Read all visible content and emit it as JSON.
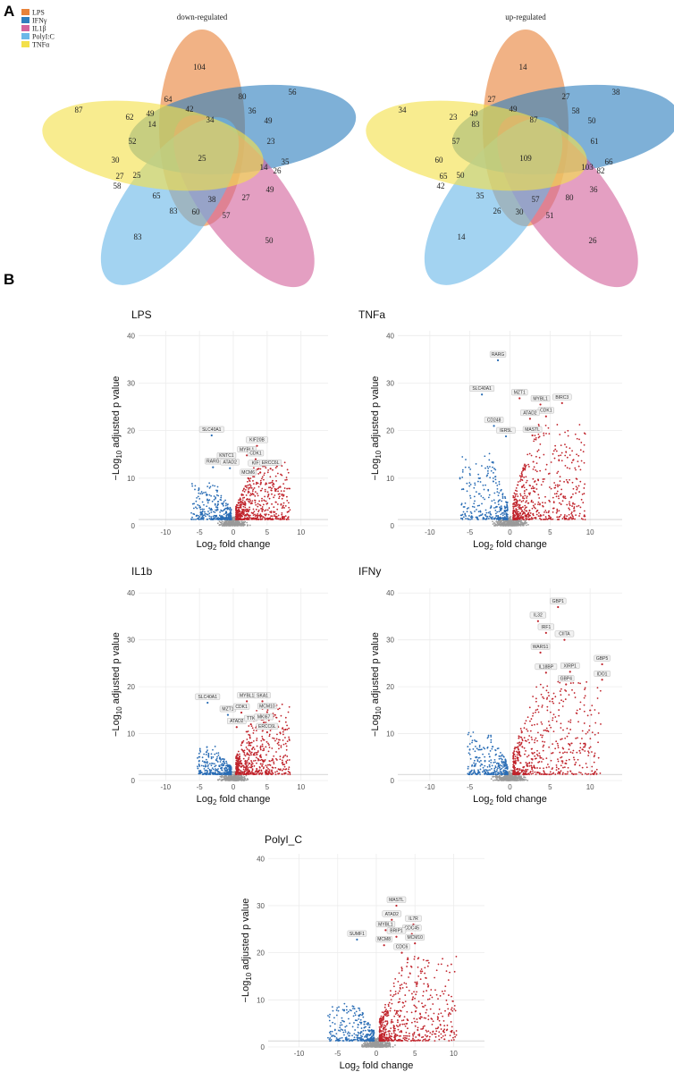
{
  "panels": {
    "a": "A",
    "b": "B"
  },
  "colors": {
    "lps": "#e8833a",
    "ifny": "#2f7fbf",
    "il1b": "#d3649d",
    "polyic": "#6bb8e8",
    "tnfa": "#f3e04a",
    "down": "#2a6db5",
    "up": "#c0232b",
    "ns": "#9a9a9a",
    "grid": "#ececec"
  },
  "venn": {
    "legend": [
      "LPS",
      "IFNγ",
      "IL1β",
      "PolyI:C",
      "TNFα"
    ],
    "down": {
      "title": "down-regulated",
      "values": [
        "104",
        "56",
        "50",
        "83",
        "87",
        "64",
        "80",
        "36",
        "49",
        "42",
        "34",
        "49",
        "62",
        "14",
        "52",
        "23",
        "30",
        "25",
        "14",
        "35",
        "26",
        "27",
        "25",
        "58",
        "65",
        "83",
        "60",
        "38",
        "27",
        "49",
        "57"
      ]
    },
    "up": {
      "title": "up-regulated",
      "values": [
        "14",
        "38",
        "26",
        "14",
        "34",
        "27",
        "27",
        "58",
        "49",
        "49",
        "87",
        "50",
        "23",
        "83",
        "57",
        "61",
        "60",
        "109",
        "103",
        "66",
        "82",
        "65",
        "50",
        "42",
        "35",
        "26",
        "30",
        "57",
        "80",
        "36",
        "51"
      ]
    }
  },
  "chart_data": [
    {
      "type": "scatter",
      "title": "LPS",
      "xlabel": "Log2 fold change",
      "ylabel": "−Log10 adjusted p value",
      "xlim": [
        -14,
        14
      ],
      "ylim": [
        0,
        41
      ],
      "xticks": [
        "-10",
        "-5",
        "0",
        "5",
        "10"
      ],
      "yticks": [
        "0",
        "10",
        "20",
        "30",
        "40"
      ],
      "threshold": 1.3,
      "cloud": {
        "neg_extent": 6,
        "pos_extent": 8,
        "neg_peak": 8,
        "pos_peak": 12
      },
      "labels": [
        {
          "name": "SLC40A1",
          "x": -3.2,
          "y": 19
        },
        {
          "name": "KNTC1",
          "x": -1.0,
          "y": 13.5
        },
        {
          "name": "RARG",
          "x": -3.0,
          "y": 12.3
        },
        {
          "name": "ATAD2",
          "x": -0.5,
          "y": 12.1
        },
        {
          "name": "MYBL1",
          "x": 2.0,
          "y": 14.8
        },
        {
          "name": "KIF20B",
          "x": 3.5,
          "y": 16.8
        },
        {
          "name": "CDK1",
          "x": 3.3,
          "y": 14.0
        },
        {
          "name": "KIF11",
          "x": 3.6,
          "y": 11.9
        },
        {
          "name": "ERCC6L",
          "x": 5.5,
          "y": 12.0
        },
        {
          "name": "MCM6",
          "x": 2.2,
          "y": 10.0
        }
      ]
    },
    {
      "type": "scatter",
      "title": "TNFa",
      "xlabel": "Log2 fold change",
      "ylabel": "−Log10 adjusted p value",
      "xlim": [
        -14,
        14
      ],
      "ylim": [
        0,
        41
      ],
      "xticks": [
        "-10",
        "-5",
        "0",
        "5",
        "10"
      ],
      "yticks": [
        "0",
        "10",
        "20",
        "30",
        "40"
      ],
      "threshold": 1.3,
      "cloud": {
        "neg_extent": 6,
        "pos_extent": 9,
        "neg_peak": 14,
        "pos_peak": 20
      },
      "labels": [
        {
          "name": "RARG",
          "x": -1.5,
          "y": 34.8
        },
        {
          "name": "SLC40A1",
          "x": -3.5,
          "y": 27.6
        },
        {
          "name": "MZT1",
          "x": 1.2,
          "y": 26.8
        },
        {
          "name": "MYBL1",
          "x": 3.8,
          "y": 25.5
        },
        {
          "name": "BIRC3",
          "x": 6.5,
          "y": 25.8
        },
        {
          "name": "CDK1",
          "x": 4.5,
          "y": 23.0
        },
        {
          "name": "ATAD2",
          "x": 2.5,
          "y": 22.5
        },
        {
          "name": "CD248",
          "x": -2.0,
          "y": 21.0
        },
        {
          "name": "MASTL",
          "x": 2.8,
          "y": 19.0
        },
        {
          "name": "IER5L",
          "x": -0.5,
          "y": 18.8
        }
      ]
    },
    {
      "type": "scatter",
      "title": "IL1b",
      "xlabel": "Log2 fold change",
      "ylabel": "−Log10 adjusted p value",
      "xlim": [
        -14,
        14
      ],
      "ylim": [
        0,
        41
      ],
      "xticks": [
        "-10",
        "-5",
        "0",
        "5",
        "10"
      ],
      "yticks": [
        "0",
        "10",
        "20",
        "30",
        "40"
      ],
      "threshold": 1.3,
      "cloud": {
        "neg_extent": 5,
        "pos_extent": 8,
        "neg_peak": 6,
        "pos_peak": 15
      },
      "labels": [
        {
          "name": "SLC40A1",
          "x": -3.8,
          "y": 16.6
        },
        {
          "name": "MYBL1",
          "x": 2.0,
          "y": 16.9
        },
        {
          "name": "SKA1",
          "x": 4.3,
          "y": 16.9
        },
        {
          "name": "MZT1",
          "x": -0.8,
          "y": 14.0
        },
        {
          "name": "CDK1",
          "x": 1.2,
          "y": 14.5
        },
        {
          "name": "MCM10",
          "x": 5.0,
          "y": 14.6
        },
        {
          "name": "ATAD2",
          "x": 0.5,
          "y": 11.4
        },
        {
          "name": "TTK",
          "x": 2.6,
          "y": 12.0
        },
        {
          "name": "MKI67",
          "x": 4.5,
          "y": 12.3
        },
        {
          "name": "ERCC6L",
          "x": 5.0,
          "y": 10.3
        }
      ]
    },
    {
      "type": "scatter",
      "title": "IFNy",
      "xlabel": "Log2 fold change",
      "ylabel": "−Log10 adjusted p value",
      "xlim": [
        -14,
        14
      ],
      "ylim": [
        0,
        41
      ],
      "xticks": [
        "-10",
        "-5",
        "0",
        "5",
        "10"
      ],
      "yticks": [
        "0",
        "10",
        "20",
        "30",
        "40"
      ],
      "threshold": 1.3,
      "cloud": {
        "neg_extent": 5,
        "pos_extent": 11,
        "neg_peak": 9,
        "pos_peak": 20
      },
      "labels": [
        {
          "name": "GBP1",
          "x": 6.0,
          "y": 37.0
        },
        {
          "name": "IL32",
          "x": 3.5,
          "y": 34.0
        },
        {
          "name": "IRF1",
          "x": 4.5,
          "y": 31.5
        },
        {
          "name": "CIITA",
          "x": 6.8,
          "y": 30.0
        },
        {
          "name": "WARS1",
          "x": 3.8,
          "y": 27.3
        },
        {
          "name": "GBP5",
          "x": 11.5,
          "y": 24.8
        },
        {
          "name": "IL18BP",
          "x": 4.5,
          "y": 23.0
        },
        {
          "name": "XIRP1",
          "x": 7.5,
          "y": 23.2
        },
        {
          "name": "IDO1",
          "x": 11.5,
          "y": 21.5
        },
        {
          "name": "GBP4",
          "x": 7.0,
          "y": 20.5
        }
      ]
    },
    {
      "type": "scatter",
      "title": "PolyI_C",
      "xlabel": "Log2 fold change",
      "ylabel": "−Log10 adjusted p value",
      "xlim": [
        -14,
        14
      ],
      "ylim": [
        0,
        41
      ],
      "xticks": [
        "-10",
        "-5",
        "0",
        "5",
        "10"
      ],
      "yticks": [
        "0",
        "10",
        "20",
        "30",
        "40"
      ],
      "threshold": 1.3,
      "cloud": {
        "neg_extent": 6,
        "pos_extent": 10,
        "neg_peak": 8,
        "pos_peak": 18
      },
      "labels": [
        {
          "name": "MASTL",
          "x": 2.6,
          "y": 30.0
        },
        {
          "name": "ATAD2",
          "x": 2.0,
          "y": 27.0
        },
        {
          "name": "IL7R",
          "x": 4.8,
          "y": 26.0
        },
        {
          "name": "SUMF1",
          "x": -2.5,
          "y": 22.8
        },
        {
          "name": "MYBL1",
          "x": 1.2,
          "y": 24.8
        },
        {
          "name": "CDC45",
          "x": 4.6,
          "y": 24.0
        },
        {
          "name": "BRIP1",
          "x": 2.6,
          "y": 23.4
        },
        {
          "name": "MCM10",
          "x": 5.0,
          "y": 22.0
        },
        {
          "name": "MCM8",
          "x": 1.0,
          "y": 21.6
        },
        {
          "name": "CDC6",
          "x": 3.3,
          "y": 20.0
        }
      ]
    }
  ]
}
